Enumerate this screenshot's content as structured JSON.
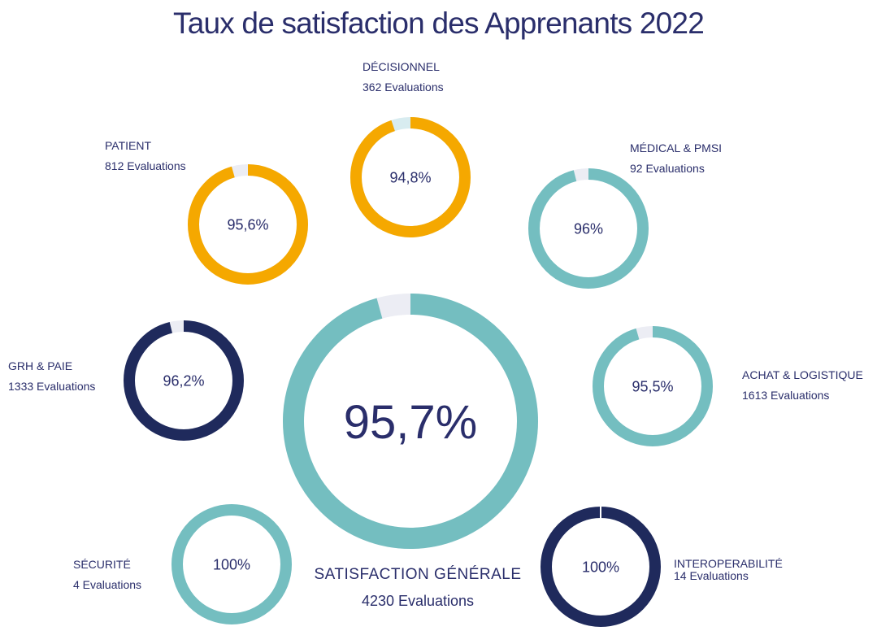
{
  "title": "Taux de satisfaction des Apprenants 2022",
  "colors": {
    "orange": "#f5a800",
    "teal": "#74bec0",
    "navy": "#1f2a5c",
    "gap": "#ecedf4",
    "gap_light": "#d8ecf0",
    "text": "#2a2e6b"
  },
  "chart_data": {
    "type": "donut",
    "title": "Taux de satisfaction des Apprenants 2022",
    "overall": {
      "name": "SATISFACTION GÉNÉRALE",
      "evaluations": "4230 Evaluations",
      "value": 95.7,
      "value_label": "95,7%",
      "color": "teal"
    },
    "series": [
      {
        "name": "DÉCISIONNEL",
        "evaluations": "362 Evaluations",
        "value": 94.8,
        "value_label": "94,8%",
        "color": "orange"
      },
      {
        "name": "PATIENT",
        "evaluations": "812 Evaluations",
        "value": 95.6,
        "value_label": "95,6%",
        "color": "orange"
      },
      {
        "name": "MÉDICAL & PMSI",
        "evaluations": "92 Evaluations",
        "value": 96,
        "value_label": "96%",
        "color": "teal"
      },
      {
        "name": "GRH & PAIE",
        "evaluations": "1333 Evaluations",
        "value": 96.2,
        "value_label": "96,2%",
        "color": "navy"
      },
      {
        "name": "ACHAT & LOGISTIQUE",
        "evaluations": "1613 Evaluations",
        "value": 95.5,
        "value_label": "95,5%",
        "color": "teal"
      },
      {
        "name": "SÉCURITÉ",
        "evaluations": "4 Evaluations",
        "value": 100,
        "value_label": "100%",
        "color": "teal"
      },
      {
        "name": "INTEROPERABILITÉ",
        "evaluations": "14 Evaluations",
        "value": 100,
        "value_label": "100%",
        "color": "navy"
      }
    ]
  }
}
